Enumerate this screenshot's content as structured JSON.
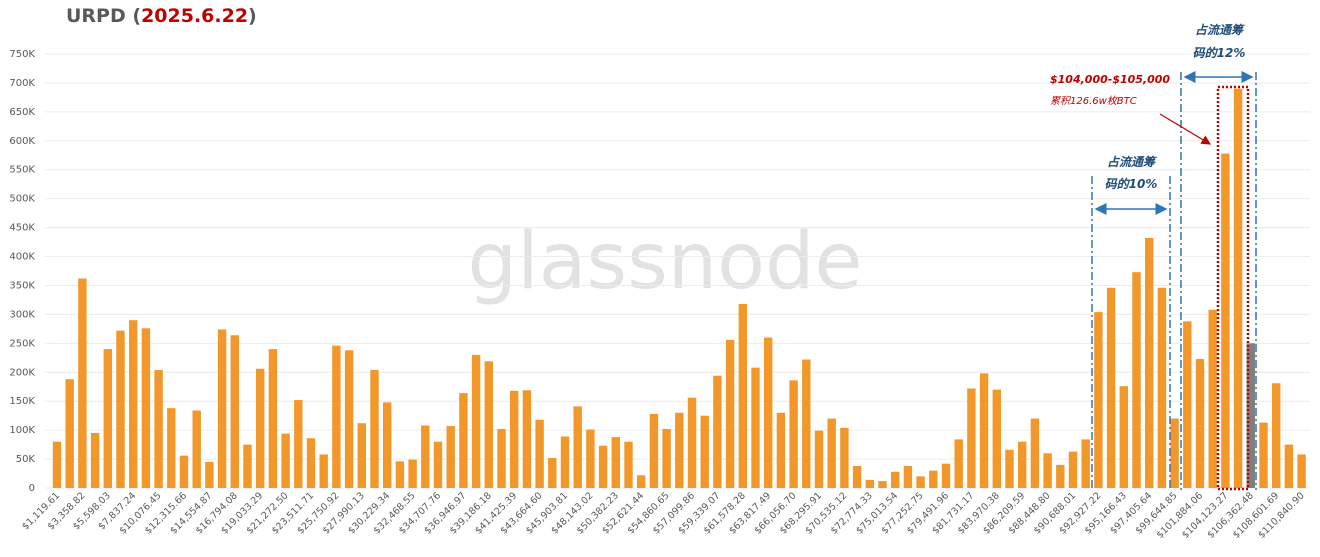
{
  "chart_data": {
    "type": "bar",
    "title": "URPD (",
    "title_date": "2025.6.22",
    "title_end": ")",
    "watermark": "glassnode",
    "categories": [
      "$1,119.61",
      null,
      "$3,358.82",
      null,
      "$5,598.03",
      null,
      "$7,837.24",
      null,
      "$10,076.45",
      null,
      "$12,315.66",
      null,
      "$14,554.87",
      null,
      "$16,794.08",
      null,
      "$19,033.29",
      null,
      "$21,272.50",
      null,
      "$23,511.71",
      null,
      "$25,750.92",
      null,
      "$27,990.13",
      null,
      "$30,229.34",
      null,
      "$32,468.55",
      null,
      "$34,707.76",
      null,
      "$36,946.97",
      null,
      "$39,186.18",
      null,
      "$41,425.39",
      null,
      "$43,664.60",
      null,
      "$45,903.81",
      null,
      "$48,143.02",
      null,
      "$50,382.23",
      null,
      "$52,621.44",
      null,
      "$54,860.65",
      null,
      "$57,099.86",
      null,
      "$59,339.07",
      null,
      "$61,578.28",
      null,
      "$63,817.49",
      null,
      "$66,056.70",
      null,
      "$68,295.91",
      null,
      "$70,535.12",
      null,
      "$72,774.33",
      null,
      "$75,013.54",
      null,
      "$77,252.75",
      null,
      "$79,491.96",
      null,
      "$81,731.17",
      null,
      "$83,970.38",
      null,
      "$86,209.59",
      null,
      "$88,448.80",
      null,
      "$90,688.01",
      null,
      "$92,927.22",
      null,
      "$95,166.43",
      null,
      "$97,405.64",
      null,
      "$99,644.85",
      null,
      "$101,884.06",
      null,
      "$104,123.27",
      null,
      "$106,362.48",
      null,
      "$108,601.69",
      null,
      "$110,840.90"
    ],
    "values": [
      80000,
      188000,
      362000,
      95000,
      240000,
      272000,
      290000,
      276000,
      204000,
      138000,
      56000,
      134000,
      45000,
      274000,
      264000,
      75000,
      206000,
      240000,
      94000,
      152000,
      86000,
      58000,
      246000,
      238000,
      112000,
      204000,
      148000,
      46000,
      49000,
      108000,
      80000,
      107000,
      164000,
      230000,
      219000,
      102000,
      168000,
      169000,
      118000,
      52000,
      89000,
      141000,
      101000,
      73000,
      88000,
      80000,
      22000,
      128000,
      102000,
      130000,
      156000,
      125000,
      194000,
      256000,
      318000,
      208000,
      260000,
      130000,
      186000,
      222000,
      99000,
      120000,
      104000,
      38000,
      14000,
      12000,
      28000,
      38000,
      20000,
      30000,
      42000,
      84000,
      172000,
      198000,
      170000,
      66000,
      80000,
      120000,
      60000,
      40000,
      63000,
      84000,
      304000,
      346000,
      176000,
      373000,
      432000,
      346000,
      120000,
      288000,
      223000,
      308000,
      578000,
      690000,
      250000,
      113000,
      181000,
      75000,
      58000
    ],
    "color": "#f2982a",
    "highlight_color": "#7f7f7f",
    "highlight_index": 94,
    "ylim": [
      0,
      750000
    ],
    "yticks": [
      {
        "value": 0,
        "label": "0"
      },
      {
        "value": 50000,
        "label": "50K"
      },
      {
        "value": 100000,
        "label": "100K"
      },
      {
        "value": 150000,
        "label": "150K"
      },
      {
        "value": 200000,
        "label": "200K"
      },
      {
        "value": 250000,
        "label": "250K"
      },
      {
        "value": 300000,
        "label": "300K"
      },
      {
        "value": 350000,
        "label": "350K"
      },
      {
        "value": 400000,
        "label": "400K"
      },
      {
        "value": 450000,
        "label": "450K"
      },
      {
        "value": 500000,
        "label": "500K"
      },
      {
        "value": 550000,
        "label": "550K"
      },
      {
        "value": 600000,
        "label": "600K"
      },
      {
        "value": 650000,
        "label": "650K"
      },
      {
        "value": 700000,
        "label": "700K"
      },
      {
        "value": 750000,
        "label": "750K"
      }
    ],
    "grid": true,
    "annotations": {
      "share_10_line1": "占流通筹",
      "share_10_line2": "码的10%",
      "share_12_line1": "占流通筹",
      "share_12_line2": "码的12%",
      "range": "$104,000-$105,000",
      "accumulated": "累积126.6w枚BTC"
    }
  }
}
